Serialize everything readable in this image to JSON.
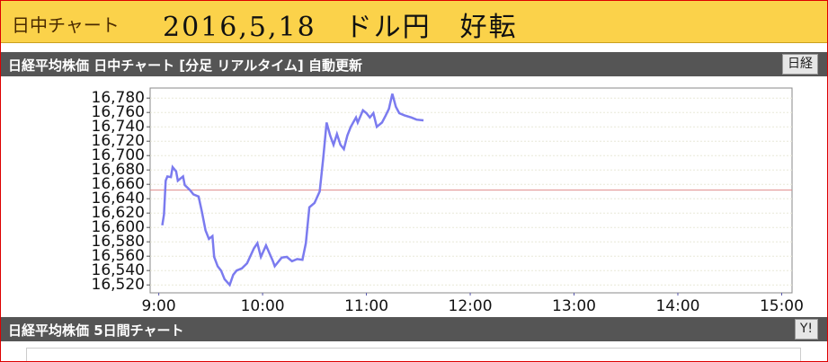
{
  "header": {
    "title": "日中チャート",
    "note": "2016,5,18　ドル円　好転"
  },
  "panel1": {
    "title": "日経平均株価 日中チャート [分足 リアルタイム] 自動更新",
    "button": "日経"
  },
  "panel2": {
    "title": "日経平均株価 5日間チャート",
    "button": "Y!"
  },
  "chart_data": {
    "type": "line",
    "color": "#7b7bef",
    "reference_line": 16652,
    "reference_color": "#e08a8a",
    "grid": true,
    "x": [
      2,
      3,
      4,
      5,
      7,
      8,
      10,
      11,
      14,
      15,
      18,
      20,
      23,
      25,
      27,
      29,
      31,
      32,
      34,
      36,
      38,
      41,
      43,
      45,
      48,
      51,
      55,
      57,
      59,
      62,
      66,
      67,
      71,
      74,
      77,
      80,
      83,
      85,
      87,
      90,
      93,
      95,
      97,
      99,
      101,
      103,
      105,
      107,
      109,
      111,
      114,
      115,
      118,
      120,
      122,
      124,
      126,
      129,
      131,
      133,
      135,
      137,
      139,
      142,
      146,
      149,
      153
    ],
    "values": [
      16603,
      16618,
      16665,
      16671,
      16670,
      16684,
      16678,
      16665,
      16671,
      16659,
      16652,
      16646,
      16643,
      16621,
      16596,
      16584,
      16588,
      16559,
      16546,
      16540,
      16528,
      16520,
      16534,
      16540,
      16543,
      16550,
      16571,
      16578,
      16559,
      16575,
      16553,
      16546,
      16558,
      16559,
      16553,
      16556,
      16555,
      16578,
      16628,
      16634,
      16650,
      16696,
      16746,
      16728,
      16715,
      16730,
      16715,
      16709,
      16728,
      16740,
      16753,
      16746,
      16763,
      16759,
      16753,
      16759,
      16740,
      16746,
      16755,
      16765,
      16786,
      16768,
      16759,
      16756,
      16753,
      16750,
      16749
    ],
    "xlim": [
      -5,
      366
    ],
    "xticks": [
      {
        "value": 0,
        "label": "9:00"
      },
      {
        "value": 60,
        "label": "10:00"
      },
      {
        "value": 120,
        "label": "11:00"
      },
      {
        "value": 180,
        "label": "12:00"
      },
      {
        "value": 240,
        "label": "13:00"
      },
      {
        "value": 300,
        "label": "14:00"
      },
      {
        "value": 360,
        "label": "15:00"
      }
    ],
    "ylim": [
      16509,
      16794
    ],
    "yticks": [
      {
        "value": 16520,
        "label": "16,520"
      },
      {
        "value": 16540,
        "label": "16,540"
      },
      {
        "value": 16560,
        "label": "16,560"
      },
      {
        "value": 16580,
        "label": "16,580"
      },
      {
        "value": 16600,
        "label": "16,600"
      },
      {
        "value": 16620,
        "label": "16,620"
      },
      {
        "value": 16640,
        "label": "16,640"
      },
      {
        "value": 16660,
        "label": "16,660"
      },
      {
        "value": 16680,
        "label": "16,680"
      },
      {
        "value": 16700,
        "label": "16,700"
      },
      {
        "value": 16720,
        "label": "16,720"
      },
      {
        "value": 16740,
        "label": "16,740"
      },
      {
        "value": 16760,
        "label": "16,760"
      },
      {
        "value": 16780,
        "label": "16,780"
      }
    ]
  }
}
